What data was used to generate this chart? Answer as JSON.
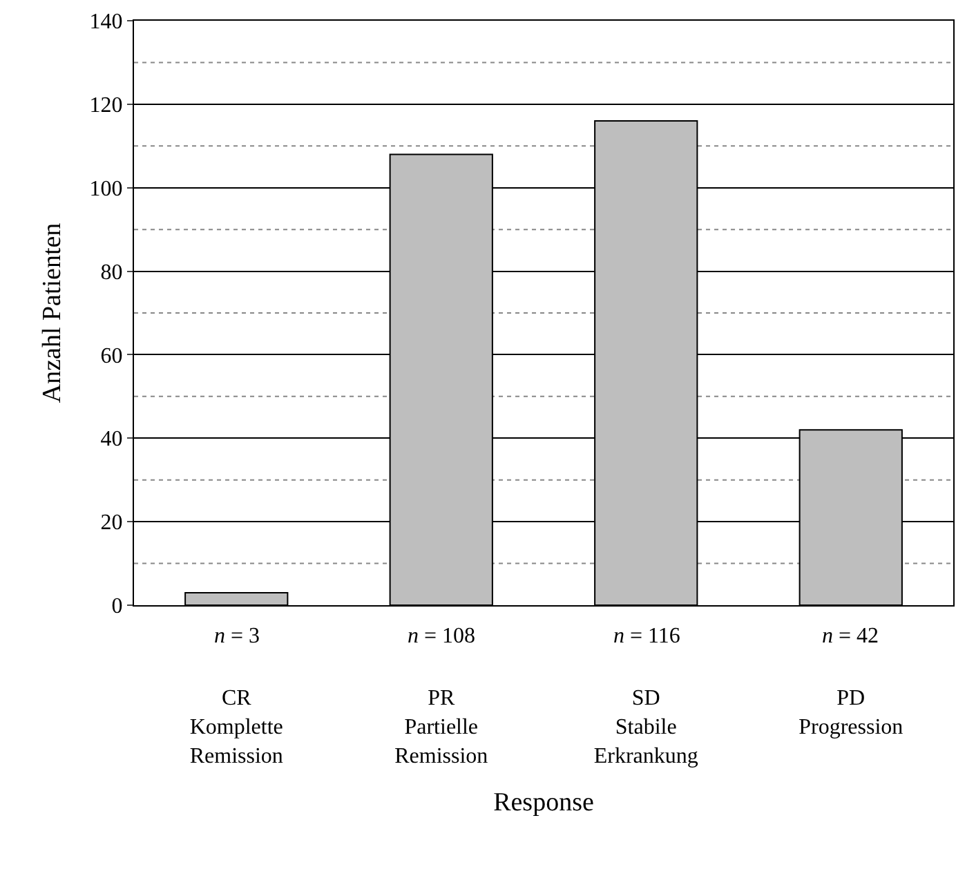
{
  "chart_data": {
    "type": "bar",
    "xlabel": "Response",
    "ylabel": "Anzahl Patienten",
    "categories": [
      "CR\nKomplette\nRemission",
      "PR\nPartielle\nRemission",
      "SD\nStabile\nErkrankung",
      "PD\nProgression"
    ],
    "values": [
      3,
      108,
      116,
      42
    ],
    "value_labels": [
      "n = 3",
      "n = 108",
      "n = 116",
      "n = 42"
    ],
    "color": "#bebebe",
    "ylim": [
      0,
      140
    ],
    "yticks": [
      0,
      {
        "value": 10,
        "label": null
      },
      20,
      {
        "value": 30,
        "label": null
      },
      40,
      {
        "value": 50,
        "label": null
      },
      60,
      {
        "value": 70,
        "label": null
      },
      80,
      {
        "value": 90,
        "label": null
      },
      100,
      {
        "value": 110,
        "label": null
      },
      120,
      {
        "value": 130,
        "label": null
      },
      140
    ],
    "grid": true,
    "legend": false
  }
}
